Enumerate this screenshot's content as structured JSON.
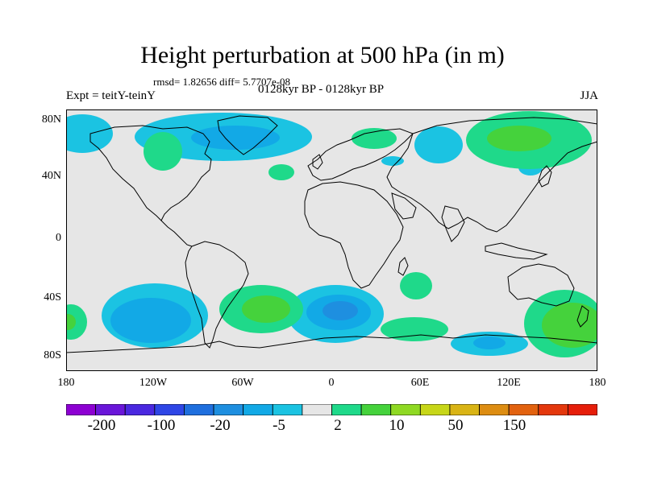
{
  "title": "Height perturbation at 500 hPa (in m)",
  "stats": "rmsd= 1.82656 diff= 5.7707e-08",
  "experiment": "Expt = teitY-teinY",
  "period": "0128kyr BP - 0128kyr BP",
  "season": "JJA",
  "lat_labels": [
    "80N",
    "40N",
    "0",
    "40S",
    "80S"
  ],
  "lon_labels": [
    "180",
    "120W",
    "60W",
    "0",
    "60E",
    "120E",
    "180"
  ],
  "colorbar": {
    "colors": [
      "#8d00d2",
      "#6a16d9",
      "#4a28e0",
      "#2e46e6",
      "#1f6fde",
      "#1e8fe0",
      "#12a9e6",
      "#1bc3e2",
      "#e6e6e6",
      "#1fd98a",
      "#45d23c",
      "#8fd923",
      "#c7d618",
      "#d9b415",
      "#dd8d12",
      "#e2620f",
      "#e4380d",
      "#e61e0a"
    ],
    "labels": [
      "-200",
      "-100",
      "-20",
      "-5",
      "2",
      "10",
      "50",
      "150"
    ]
  },
  "map_colors": {
    "background": "#e6e6e6",
    "coast": "#000000",
    "neg_light": "#1bc3e2",
    "neg_mid": "#12a9e6",
    "neg_dark": "#1e8fe0",
    "pos_light": "#1fd98a",
    "pos_mid": "#45d23c"
  }
}
